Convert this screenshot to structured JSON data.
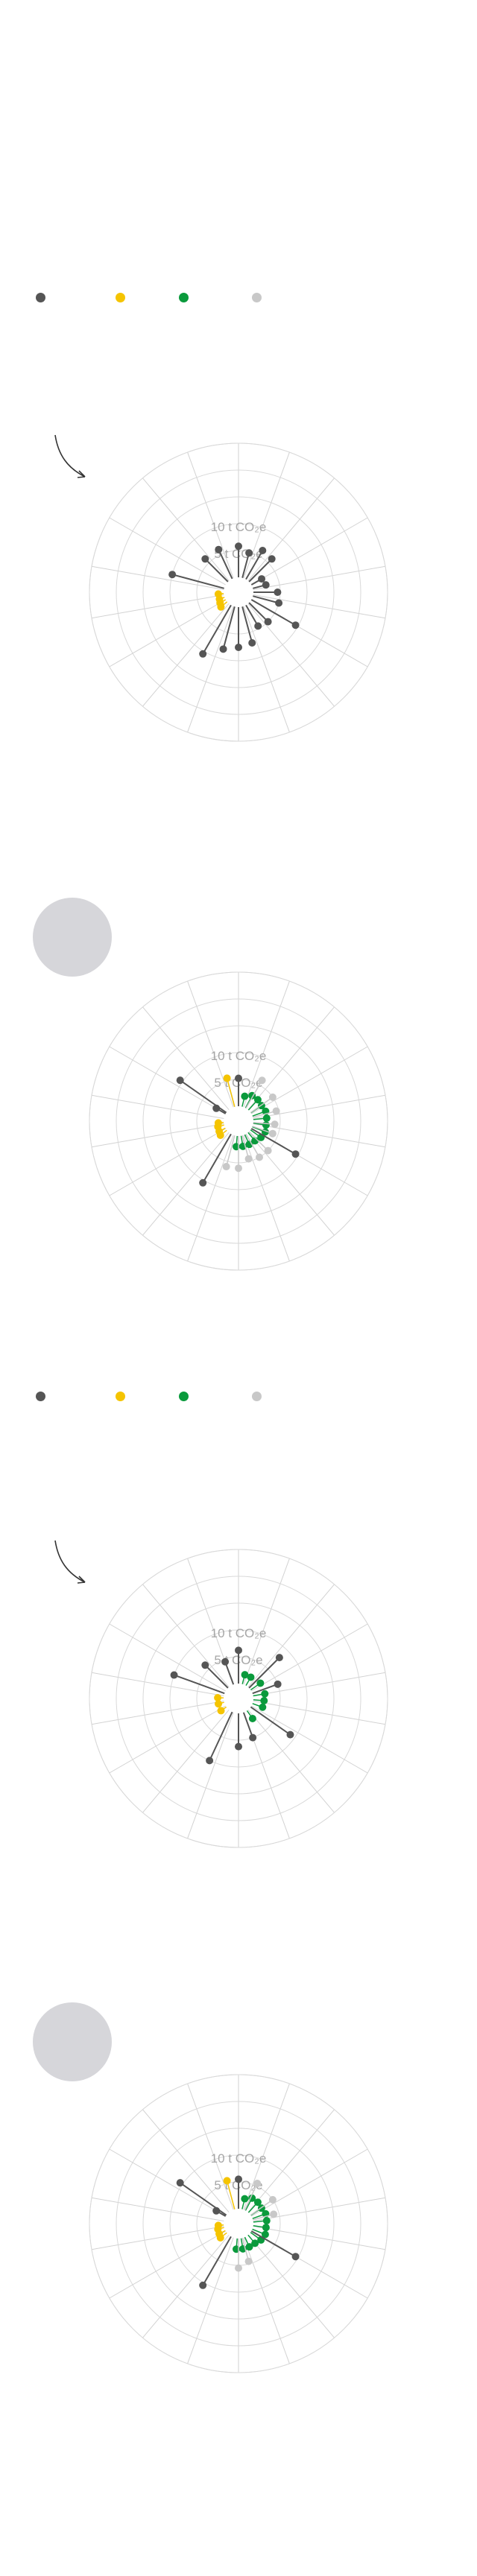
{
  "colors": {
    "dark": "#555555",
    "yellow": "#f5c400",
    "green": "#0a9a3c",
    "light": "#c8c8c8",
    "grid": "#d9d9d9",
    "spoke": "#d2d2d2",
    "circle": "#d6d6da"
  },
  "legend": {
    "items": [
      {
        "key": "dark",
        "label": ""
      },
      {
        "key": "yellow",
        "label": ""
      },
      {
        "key": "green",
        "label": ""
      },
      {
        "key": "light",
        "label": ""
      }
    ]
  },
  "chart_data": [
    {
      "type": "radial-lollipop",
      "unit": "t CO2e",
      "rings": [
        5,
        10,
        15,
        20,
        25
      ],
      "ring_labels": [
        {
          "value": 5,
          "text": "5 t CO₂e"
        },
        {
          "value": 10,
          "text": "10 t CO₂e"
        }
      ],
      "points": [
        {
          "angle": 0,
          "value": 5.8,
          "group": "dark"
        },
        {
          "angle": 15,
          "value": 4.8,
          "group": "dark"
        },
        {
          "angle": 30,
          "value": 6.2,
          "group": "dark"
        },
        {
          "angle": 45,
          "value": 6.0,
          "group": "dark"
        },
        {
          "angle": 60,
          "value": 2.2,
          "group": "dark"
        },
        {
          "angle": 75,
          "value": 2.5,
          "group": "dark"
        },
        {
          "angle": 90,
          "value": 4.5,
          "group": "dark"
        },
        {
          "angle": 105,
          "value": 5.0,
          "group": "dark"
        },
        {
          "angle": 120,
          "value": 9.5,
          "group": "dark"
        },
        {
          "angle": 135,
          "value": 5.0,
          "group": "dark"
        },
        {
          "angle": 150,
          "value": 4.5,
          "group": "dark"
        },
        {
          "angle": 165,
          "value": 7.0,
          "group": "dark"
        },
        {
          "angle": 180,
          "value": 7.5,
          "group": "dark"
        },
        {
          "angle": 195,
          "value": 8.2,
          "group": "dark"
        },
        {
          "angle": 210,
          "value": 10.5,
          "group": "dark"
        },
        {
          "angle": 230,
          "value": 1.5,
          "group": "yellow"
        },
        {
          "angle": 240,
          "value": 1.2,
          "group": "yellow"
        },
        {
          "angle": 250,
          "value": 1.0,
          "group": "yellow"
        },
        {
          "angle": 265,
          "value": 1.0,
          "group": "yellow"
        },
        {
          "angle": 285,
          "value": 10.0,
          "group": "dark"
        },
        {
          "angle": 315,
          "value": 6.0,
          "group": "dark"
        },
        {
          "angle": 335,
          "value": 6.0,
          "group": "dark"
        }
      ]
    },
    {
      "type": "radial-lollipop",
      "unit": "t CO2e",
      "rings": [
        5,
        10,
        15,
        20,
        25
      ],
      "ring_labels": [
        {
          "value": 5,
          "text": "5 t CO₂e"
        },
        {
          "value": 10,
          "text": "10 t CO₂e"
        }
      ],
      "points": [
        {
          "angle": 0,
          "value": 5.2,
          "group": "dark"
        },
        {
          "angle": 14,
          "value": 2.0,
          "group": "green"
        },
        {
          "angle": 28,
          "value": 2.6,
          "group": "green"
        },
        {
          "angle": 42,
          "value": 2.6,
          "group": "green"
        },
        {
          "angle": 56,
          "value": 2.4,
          "group": "green"
        },
        {
          "angle": 70,
          "value": 2.6,
          "group": "green"
        },
        {
          "angle": 84,
          "value": 2.5,
          "group": "green"
        },
        {
          "angle": 98,
          "value": 2.4,
          "group": "green"
        },
        {
          "angle": 112,
          "value": 2.6,
          "group": "green"
        },
        {
          "angle": 126,
          "value": 2.4,
          "group": "green"
        },
        {
          "angle": 140,
          "value": 2.0,
          "group": "green"
        },
        {
          "angle": 155,
          "value": 2.0,
          "group": "green"
        },
        {
          "angle": 170,
          "value": 2.0,
          "group": "green"
        },
        {
          "angle": 185,
          "value": 2.0,
          "group": "green"
        },
        {
          "angle": 30,
          "value": 6.0,
          "group": "light"
        },
        {
          "angle": 55,
          "value": 5.0,
          "group": "light"
        },
        {
          "angle": 75,
          "value": 4.5,
          "group": "light"
        },
        {
          "angle": 95,
          "value": 4.0,
          "group": "light"
        },
        {
          "angle": 110,
          "value": 4.0,
          "group": "light"
        },
        {
          "angle": 135,
          "value": 5.0,
          "group": "light"
        },
        {
          "angle": 150,
          "value": 5.0,
          "group": "light"
        },
        {
          "angle": 165,
          "value": 4.5,
          "group": "light"
        },
        {
          "angle": 180,
          "value": 6.0,
          "group": "light"
        },
        {
          "angle": 195,
          "value": 6.0,
          "group": "light"
        },
        {
          "angle": 345,
          "value": 5.5,
          "group": "light"
        },
        {
          "angle": 120,
          "value": 9.5,
          "group": "dark"
        },
        {
          "angle": 210,
          "value": 10.5,
          "group": "dark"
        },
        {
          "angle": 232,
          "value": 1.5,
          "group": "yellow"
        },
        {
          "angle": 242,
          "value": 1.3,
          "group": "yellow"
        },
        {
          "angle": 255,
          "value": 1.2,
          "group": "yellow"
        },
        {
          "angle": 265,
          "value": 1.0,
          "group": "yellow"
        },
        {
          "angle": 300,
          "value": 2.0,
          "group": "dark"
        },
        {
          "angle": 305,
          "value": 10.5,
          "group": "dark"
        },
        {
          "angle": 345,
          "value": 5.5,
          "group": "yellow"
        }
      ]
    },
    {
      "type": "radial-lollipop",
      "unit": "t CO2e",
      "rings": [
        5,
        10,
        15,
        20,
        25
      ],
      "ring_labels": [
        {
          "value": 5,
          "text": "5 t CO₂e"
        },
        {
          "value": 10,
          "text": "10 t CO₂e"
        }
      ],
      "points": [
        {
          "angle": 0,
          "value": 6.2,
          "group": "dark"
        },
        {
          "angle": 15,
          "value": 1.8,
          "group": "green"
        },
        {
          "angle": 30,
          "value": 1.8,
          "group": "green"
        },
        {
          "angle": 45,
          "value": 8.0,
          "group": "dark"
        },
        {
          "angle": 55,
          "value": 2.2,
          "group": "green"
        },
        {
          "angle": 70,
          "value": 5.0,
          "group": "dark"
        },
        {
          "angle": 80,
          "value": 2.2,
          "group": "green"
        },
        {
          "angle": 95,
          "value": 2.0,
          "group": "green"
        },
        {
          "angle": 110,
          "value": 2.0,
          "group": "green"
        },
        {
          "angle": 125,
          "value": 9.0,
          "group": "dark"
        },
        {
          "angle": 145,
          "value": 1.8,
          "group": "green"
        },
        {
          "angle": 160,
          "value": 5.0,
          "group": "dark"
        },
        {
          "angle": 180,
          "value": 6.2,
          "group": "dark"
        },
        {
          "angle": 205,
          "value": 10.0,
          "group": "dark"
        },
        {
          "angle": 235,
          "value": 1.2,
          "group": "yellow"
        },
        {
          "angle": 255,
          "value": 1.1,
          "group": "yellow"
        },
        {
          "angle": 272,
          "value": 1.1,
          "group": "yellow"
        },
        {
          "angle": 290,
          "value": 10.0,
          "group": "dark"
        },
        {
          "angle": 315,
          "value": 6.0,
          "group": "dark"
        },
        {
          "angle": 340,
          "value": 4.5,
          "group": "dark"
        }
      ]
    },
    {
      "type": "radial-lollipop",
      "unit": "t CO2e",
      "rings": [
        5,
        10,
        15,
        20,
        25
      ],
      "ring_labels": [
        {
          "value": 5,
          "text": "5 t CO₂e"
        },
        {
          "value": 10,
          "text": "10 t CO₂e"
        }
      ],
      "points": [
        {
          "angle": 0,
          "value": 5.5,
          "group": "dark"
        },
        {
          "angle": 14,
          "value": 2.0,
          "group": "green"
        },
        {
          "angle": 28,
          "value": 2.6,
          "group": "green"
        },
        {
          "angle": 42,
          "value": 2.6,
          "group": "green"
        },
        {
          "angle": 56,
          "value": 2.4,
          "group": "green"
        },
        {
          "angle": 70,
          "value": 2.6,
          "group": "green"
        },
        {
          "angle": 84,
          "value": 2.5,
          "group": "green"
        },
        {
          "angle": 98,
          "value": 2.4,
          "group": "green"
        },
        {
          "angle": 112,
          "value": 2.6,
          "group": "green"
        },
        {
          "angle": 126,
          "value": 2.4,
          "group": "green"
        },
        {
          "angle": 140,
          "value": 2.0,
          "group": "green"
        },
        {
          "angle": 155,
          "value": 2.0,
          "group": "green"
        },
        {
          "angle": 170,
          "value": 2.0,
          "group": "green"
        },
        {
          "angle": 185,
          "value": 2.0,
          "group": "green"
        },
        {
          "angle": 25,
          "value": 5.5,
          "group": "light"
        },
        {
          "angle": 55,
          "value": 5.0,
          "group": "light"
        },
        {
          "angle": 75,
          "value": 4.0,
          "group": "light"
        },
        {
          "angle": 165,
          "value": 4.5,
          "group": "light"
        },
        {
          "angle": 180,
          "value": 5.5,
          "group": "light"
        },
        {
          "angle": 120,
          "value": 9.5,
          "group": "dark"
        },
        {
          "angle": 210,
          "value": 10.5,
          "group": "dark"
        },
        {
          "angle": 232,
          "value": 1.5,
          "group": "yellow"
        },
        {
          "angle": 242,
          "value": 1.3,
          "group": "yellow"
        },
        {
          "angle": 255,
          "value": 1.2,
          "group": "yellow"
        },
        {
          "angle": 265,
          "value": 1.0,
          "group": "yellow"
        },
        {
          "angle": 300,
          "value": 2.0,
          "group": "dark"
        },
        {
          "angle": 305,
          "value": 10.5,
          "group": "dark"
        },
        {
          "angle": 345,
          "value": 5.5,
          "group": "yellow"
        }
      ]
    }
  ]
}
